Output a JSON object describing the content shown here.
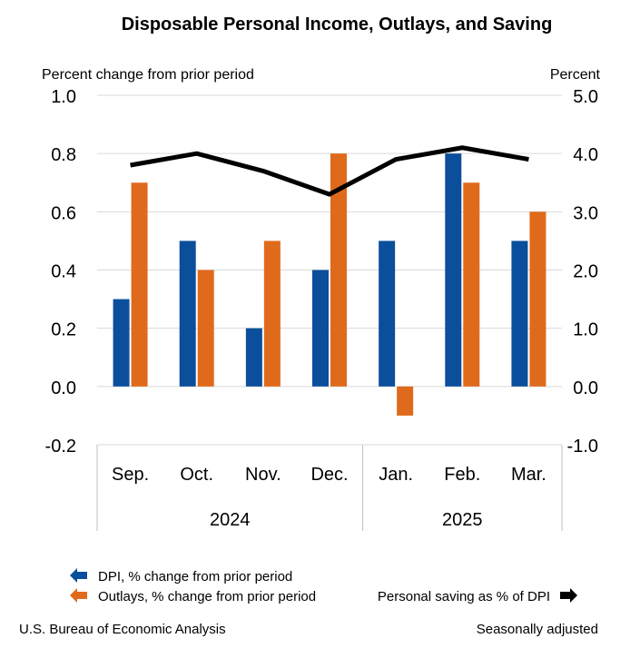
{
  "chart_data": {
    "type": "bar+line",
    "title": "Disposable Personal Income, Outlays, and Saving",
    "left_axis_label": "Percent change from prior period",
    "right_axis_label": "Percent",
    "left_ylim": [
      -0.2,
      1.0
    ],
    "right_ylim": [
      -1.0,
      5.0
    ],
    "left_ticks": [
      "1.0",
      "0.8",
      "0.6",
      "0.4",
      "0.2",
      "0.0",
      "-0.2"
    ],
    "right_ticks": [
      "5.0",
      "4.0",
      "3.0",
      "2.0",
      "1.0",
      "0.0",
      "-1.0"
    ],
    "categories": [
      "Sep.",
      "Oct.",
      "Nov.",
      "Dec.",
      "Jan.",
      "Feb.",
      "Mar."
    ],
    "year_groups": [
      {
        "label": "2024",
        "count": 4
      },
      {
        "label": "2025",
        "count": 3
      }
    ],
    "series": [
      {
        "name": "DPI, % change from prior period",
        "axis": "left",
        "kind": "bar",
        "color": "#0b4f9c",
        "values": [
          0.3,
          0.5,
          0.2,
          0.4,
          0.5,
          0.8,
          0.5
        ]
      },
      {
        "name": "Outlays, % change from prior period",
        "axis": "left",
        "kind": "bar",
        "color": "#e06a1b",
        "values": [
          0.7,
          0.4,
          0.5,
          0.8,
          -0.1,
          0.7,
          0.6
        ]
      },
      {
        "name": "Personal saving as % of DPI",
        "axis": "right",
        "kind": "line",
        "color": "#000000",
        "values": [
          3.8,
          4.0,
          3.7,
          3.3,
          3.9,
          4.1,
          3.9
        ]
      }
    ],
    "grid": true,
    "legend": "bottom"
  },
  "footer": {
    "source": "U.S. Bureau of Economic Analysis",
    "note": "Seasonally adjusted"
  }
}
